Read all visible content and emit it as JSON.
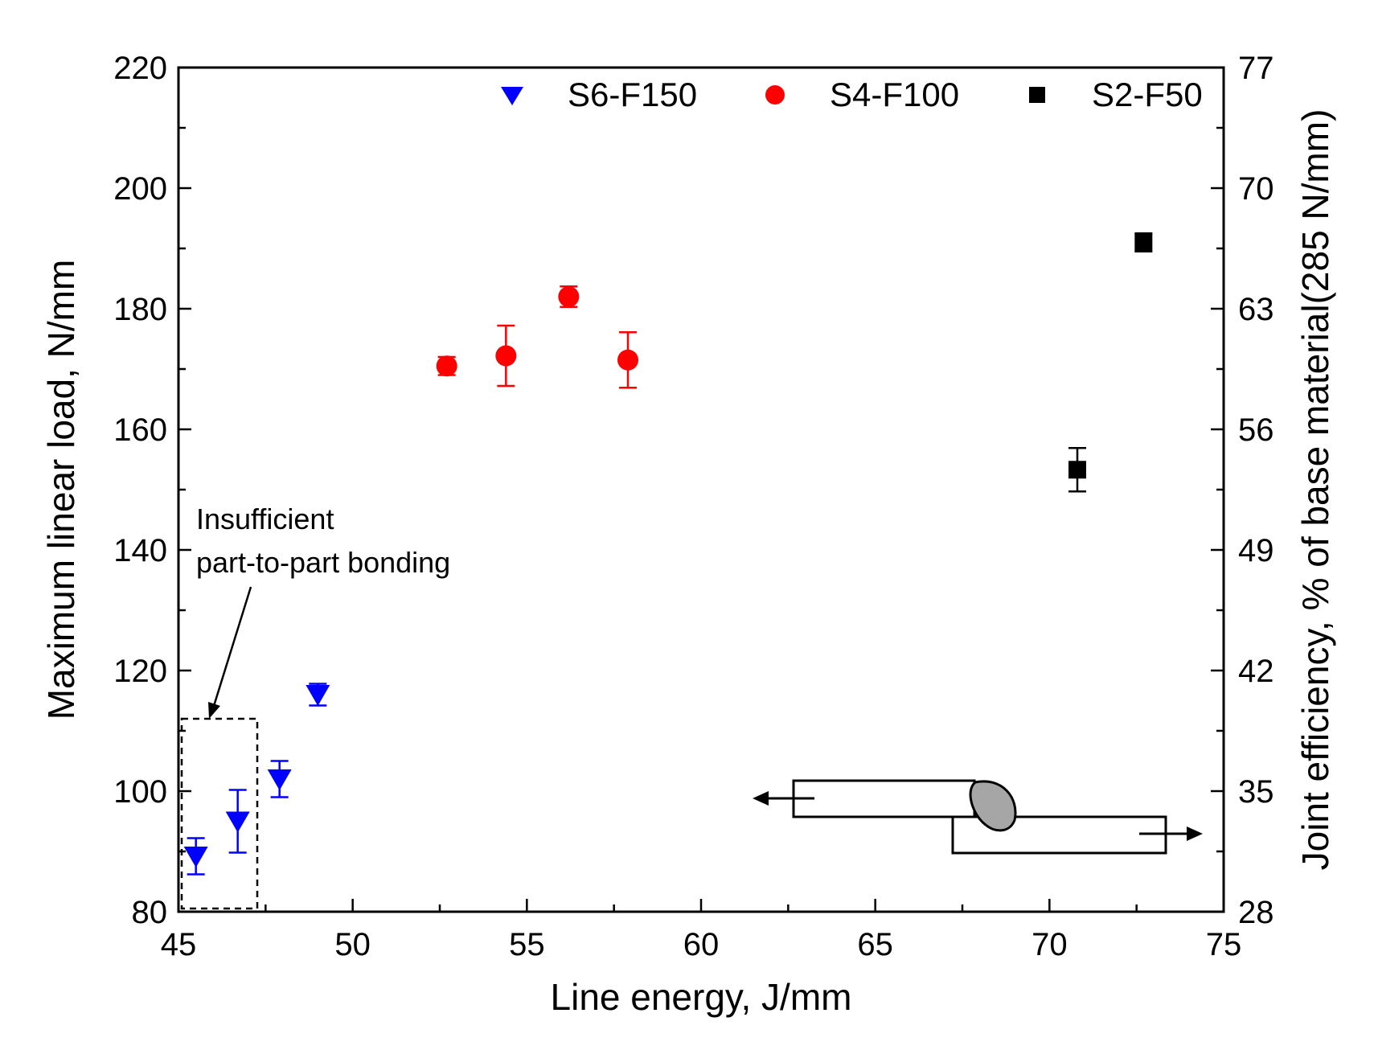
{
  "chart_data": {
    "type": "scatter",
    "xlabel": "Line energy, J/mm",
    "ylabel": "Maximum linear load, N/mm",
    "y2label": "Joint efficiency, % of base material(285 N/mm)",
    "xlim": [
      45,
      75
    ],
    "ylim": [
      80,
      220
    ],
    "x_ticks": [
      "45",
      "50",
      "55",
      "60",
      "65",
      "70",
      "75"
    ],
    "y_ticks": [
      "80",
      "100",
      "120",
      "140",
      "160",
      "180",
      "200",
      "220"
    ],
    "y2_ticks": [
      "28",
      "35",
      "42",
      "49",
      "56",
      "63",
      "70",
      "77"
    ],
    "grid": false,
    "legend_position": "top",
    "series": [
      {
        "name": "S6-F150",
        "marker": "triangle-down",
        "color": "#0000ff",
        "points": [
          {
            "x": 45.5,
            "y": 89.2,
            "err": 3.0
          },
          {
            "x": 46.7,
            "y": 95.0,
            "err": 5.2
          },
          {
            "x": 47.9,
            "y": 102.0,
            "err": 3.0
          },
          {
            "x": 49.0,
            "y": 116.0,
            "err": 1.8
          }
        ]
      },
      {
        "name": "S4-F100",
        "marker": "circle",
        "color": "#ff0000",
        "points": [
          {
            "x": 52.7,
            "y": 170.5,
            "err": 1.5
          },
          {
            "x": 54.4,
            "y": 172.2,
            "err": 5.0
          },
          {
            "x": 56.2,
            "y": 182.0,
            "err": 1.7
          },
          {
            "x": 57.9,
            "y": 171.5,
            "err": 4.6
          }
        ]
      },
      {
        "name": "S2-F50",
        "marker": "square",
        "color": "#000000",
        "points": [
          {
            "x": 70.8,
            "y": 153.3,
            "err": 3.6
          },
          {
            "x": 72.7,
            "y": 191.0,
            "err": 1.5
          }
        ]
      }
    ],
    "annotations": [
      {
        "text_lines": [
          "Insufficient",
          "part-to-part bonding"
        ]
      }
    ]
  }
}
